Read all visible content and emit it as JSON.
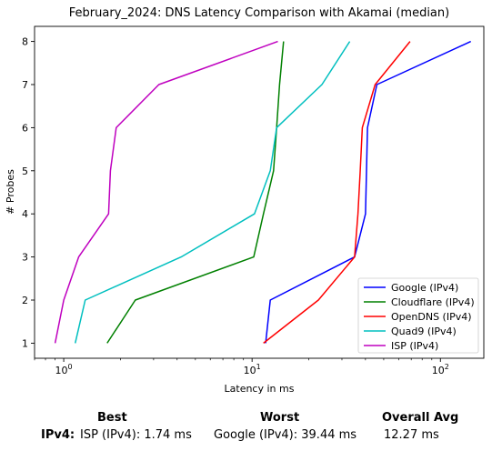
{
  "chart_data": {
    "type": "line",
    "title": "February_2024: DNS Latency Comparison with Akamai (median)",
    "xlabel": "Latency in ms",
    "ylabel": "# Probes",
    "xscale": "log",
    "xlim": [
      0.7,
      170
    ],
    "ylim": [
      0.65,
      8.35
    ],
    "xticks": [
      {
        "value": 1,
        "base": "10",
        "exp": "0"
      },
      {
        "value": 10,
        "base": "10",
        "exp": "1"
      },
      {
        "value": 100,
        "base": "10",
        "exp": "2"
      }
    ],
    "yticks": [
      "1",
      "2",
      "3",
      "4",
      "5",
      "6",
      "7",
      "8"
    ],
    "grid": false,
    "legend_position": "lower-right",
    "series": [
      {
        "name": "Google (IPv4)",
        "color": "#0000ff",
        "x": [
          11.8,
          12.5,
          35,
          40,
          40.5,
          41,
          46,
          145
        ],
        "y": [
          1,
          2,
          3,
          4,
          5,
          6,
          7,
          8
        ]
      },
      {
        "name": "Cloudflare (IPv4)",
        "color": "#008000",
        "x": [
          1.7,
          2.4,
          10.2,
          11.5,
          13,
          13.5,
          14,
          14.7
        ],
        "y": [
          1,
          2,
          3,
          4,
          5,
          6,
          7,
          8
        ]
      },
      {
        "name": "OpenDNS (IPv4)",
        "color": "#ff0000",
        "x": [
          11.5,
          22.5,
          35,
          36.5,
          37.5,
          38.5,
          45,
          69
        ],
        "y": [
          1,
          2,
          3,
          4,
          5,
          6,
          7,
          8
        ]
      },
      {
        "name": "Quad9 (IPv4)",
        "color": "#00bfbf",
        "x": [
          1.15,
          1.3,
          4.2,
          10.3,
          12.5,
          13.5,
          23.5,
          33
        ],
        "y": [
          1,
          2,
          3,
          4,
          5,
          6,
          7,
          8
        ]
      },
      {
        "name": "ISP (IPv4)",
        "color": "#bf00bf",
        "x": [
          0.9,
          1.0,
          1.2,
          1.73,
          1.77,
          1.9,
          3.2,
          13.7
        ],
        "y": [
          1,
          2,
          3,
          4,
          5,
          6,
          7,
          8
        ]
      }
    ]
  },
  "summary": {
    "best_header": "Best",
    "worst_header": "Worst",
    "avg_header": "Overall Avg",
    "row_label": "IPv4:",
    "best_value": "ISP (IPv4): 1.74 ms",
    "worst_value": "Google (IPv4): 39.44 ms",
    "avg_value": "12.27 ms"
  }
}
